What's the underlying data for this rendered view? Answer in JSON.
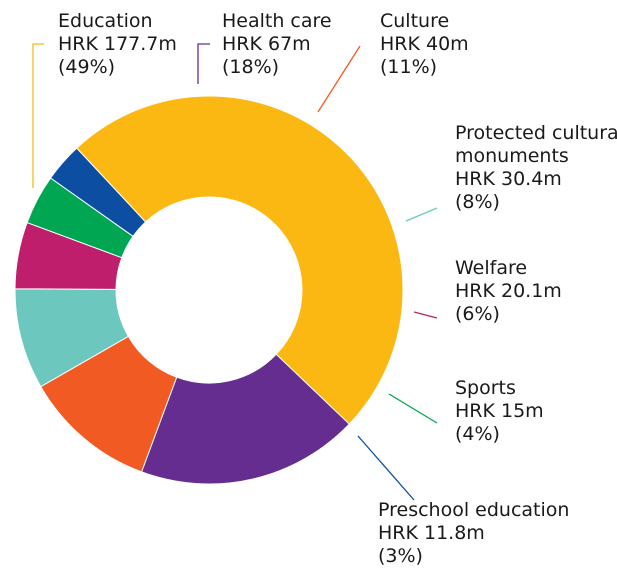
{
  "chart_data": {
    "type": "donut",
    "slices": [
      {
        "name": "Education",
        "amount": "HRK 177.7m",
        "percent": "(49%)",
        "value": 177.7,
        "color": "#FBB813"
      },
      {
        "name": "Health care",
        "amount": "HRK 67m",
        "percent": "(18%)",
        "value": 67,
        "color": "#662D91"
      },
      {
        "name": "Culture",
        "amount": "HRK 40m",
        "percent": "(11%)",
        "value": 40,
        "color": "#F15A22"
      },
      {
        "name": "Protected cultural monuments",
        "name_lines": [
          "Protected cultural",
          "monuments"
        ],
        "amount": "HRK 30.4m",
        "percent": "(8%)",
        "value": 30.4,
        "color": "#6CC8BF"
      },
      {
        "name": "Welfare",
        "amount": "HRK 20.1m",
        "percent": "(6%)",
        "value": 20.1,
        "color": "#BE1E6B"
      },
      {
        "name": "Sports",
        "amount": "HRK 15m",
        "percent": "(4%)",
        "value": 15,
        "color": "#00A651"
      },
      {
        "name": "Preschool education",
        "amount": "HRK 11.8m",
        "percent": "(3%)",
        "value": 11.8,
        "color": "#0B4EA2"
      }
    ]
  }
}
